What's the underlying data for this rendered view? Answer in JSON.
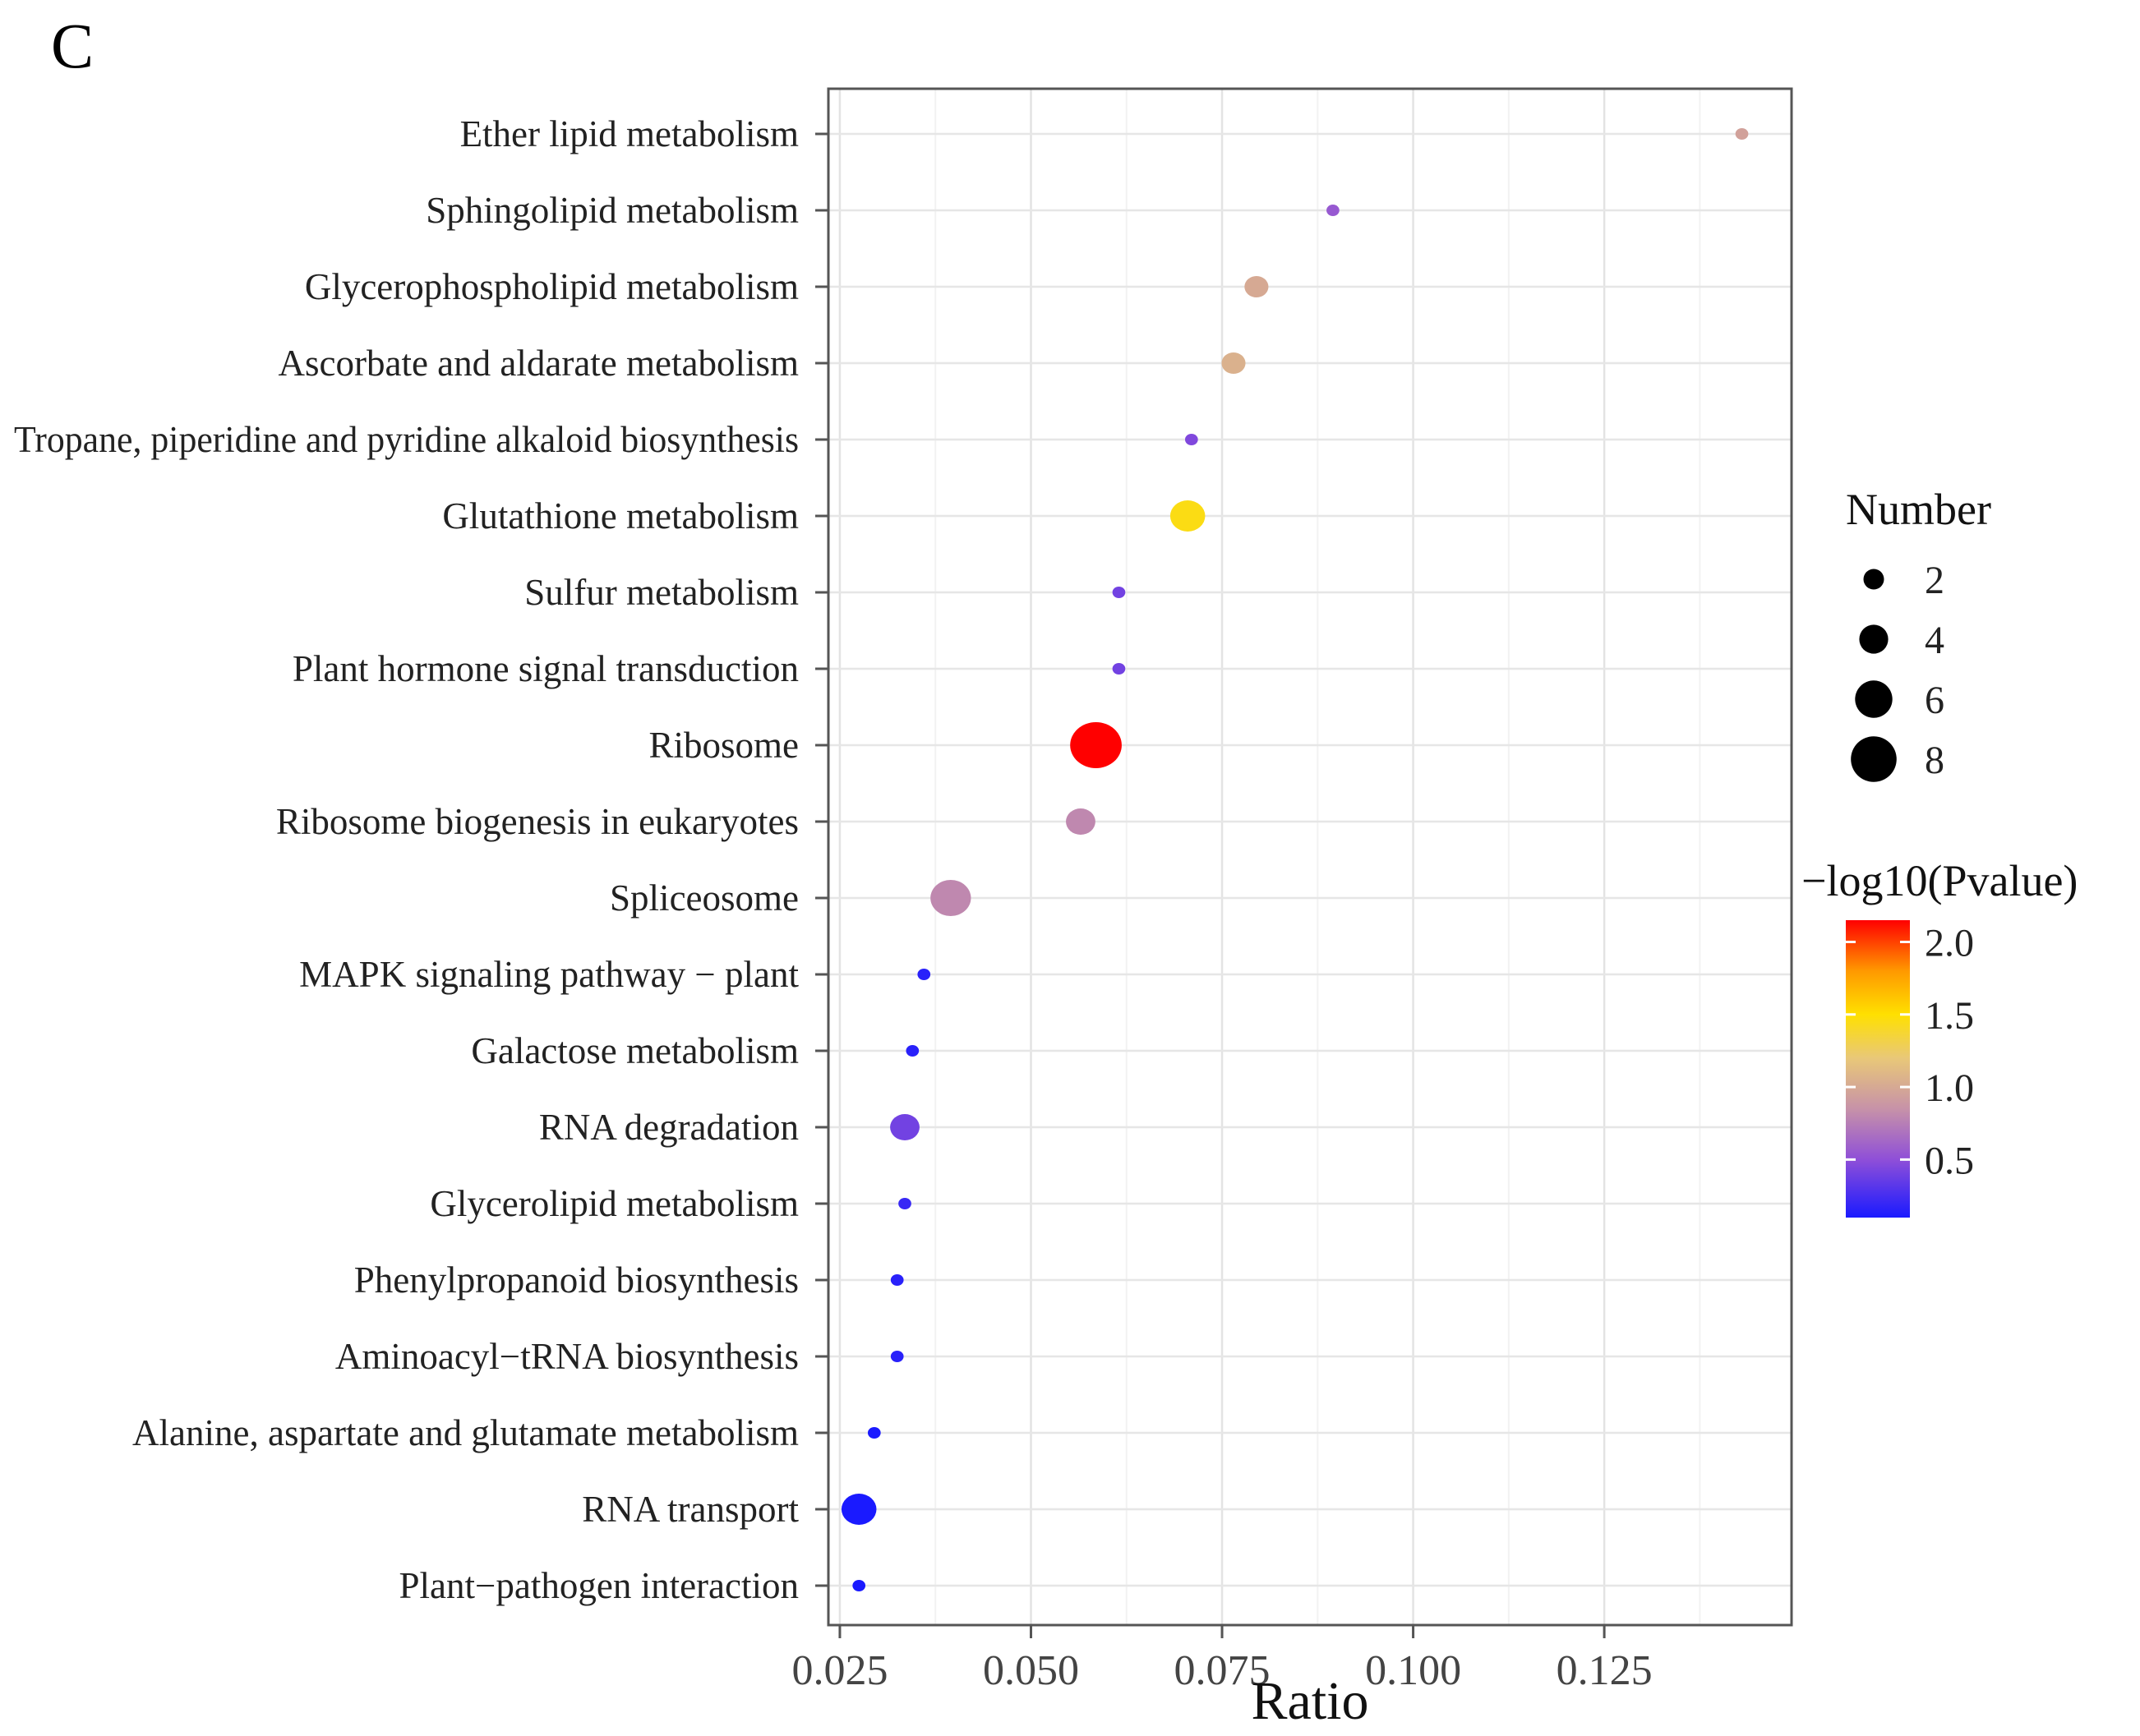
{
  "panel_label": "C",
  "chart_data": {
    "type": "scatter",
    "title": "",
    "xlabel": "Ratio",
    "ylabel": "",
    "xlim": [
      0.0235,
      0.1495
    ],
    "xticks": [
      0.025,
      0.05,
      0.075,
      0.1,
      0.125
    ],
    "xtick_labels": [
      "0.025",
      "0.050",
      "0.075",
      "0.100",
      "0.125"
    ],
    "grid": true,
    "categories": [
      "Ether lipid metabolism",
      "Sphingolipid metabolism",
      "Glycerophospholipid metabolism",
      "Ascorbate and aldarate metabolism",
      "Tropane, piperidine and pyridine alkaloid biosynthesis",
      "Glutathione metabolism",
      "Sulfur metabolism",
      "Plant hormone signal transduction",
      "Ribosome",
      "Ribosome biogenesis in eukaryotes",
      "Spliceosome",
      "MAPK signaling pathway − plant",
      "Galactose metabolism",
      "RNA degradation",
      "Glycerolipid metabolism",
      "Phenylpropanoid biosynthesis",
      "Aminoacyl−tRNA biosynthesis",
      "Alanine, aspartate and glutamate metabolism",
      "RNA transport",
      "Plant−pathogen interaction"
    ],
    "points": [
      {
        "ratio": 0.143,
        "number": 1,
        "neglog10p": 0.95
      },
      {
        "ratio": 0.0895,
        "number": 1,
        "neglog10p": 0.55
      },
      {
        "ratio": 0.0795,
        "number": 3,
        "neglog10p": 1.0
      },
      {
        "ratio": 0.0765,
        "number": 3,
        "neglog10p": 1.05
      },
      {
        "ratio": 0.071,
        "number": 1,
        "neglog10p": 0.45
      },
      {
        "ratio": 0.0705,
        "number": 5,
        "neglog10p": 1.45
      },
      {
        "ratio": 0.0615,
        "number": 1,
        "neglog10p": 0.4
      },
      {
        "ratio": 0.0615,
        "number": 1,
        "neglog10p": 0.4
      },
      {
        "ratio": 0.0585,
        "number": 8,
        "neglog10p": 2.15
      },
      {
        "ratio": 0.0565,
        "number": 4,
        "neglog10p": 0.8
      },
      {
        "ratio": 0.0395,
        "number": 6,
        "neglog10p": 0.8
      },
      {
        "ratio": 0.036,
        "number": 1,
        "neglog10p": 0.15
      },
      {
        "ratio": 0.0345,
        "number": 1,
        "neglog10p": 0.15
      },
      {
        "ratio": 0.0335,
        "number": 4,
        "neglog10p": 0.4
      },
      {
        "ratio": 0.0335,
        "number": 1,
        "neglog10p": 0.2
      },
      {
        "ratio": 0.0325,
        "number": 1,
        "neglog10p": 0.15
      },
      {
        "ratio": 0.0325,
        "number": 1,
        "neglog10p": 0.15
      },
      {
        "ratio": 0.0295,
        "number": 1,
        "neglog10p": 0.1
      },
      {
        "ratio": 0.0275,
        "number": 5,
        "neglog10p": 0.1
      },
      {
        "ratio": 0.0275,
        "number": 1,
        "neglog10p": 0.1
      }
    ],
    "legend_size": {
      "title": "Number",
      "values": [
        2,
        4,
        6,
        8
      ],
      "labels": [
        "2",
        "4",
        "6",
        "8"
      ]
    },
    "legend_color": {
      "title": "−log10(Pvalue)",
      "range": [
        0.1,
        2.15
      ],
      "ticks": [
        0.5,
        1.0,
        1.5,
        2.0
      ],
      "labels": [
        "0.5",
        "1.0",
        "1.5",
        "2.0"
      ],
      "gradient": [
        {
          "v": 0.1,
          "color": "#1a1aff"
        },
        {
          "v": 0.5,
          "color": "#8f4fd8"
        },
        {
          "v": 0.85,
          "color": "#c792a8"
        },
        {
          "v": 1.2,
          "color": "#e9c878"
        },
        {
          "v": 1.5,
          "color": "#ffe000"
        },
        {
          "v": 1.8,
          "color": "#ff9900"
        },
        {
          "v": 2.15,
          "color": "#ff0000"
        }
      ]
    },
    "legend_placement": "right"
  }
}
